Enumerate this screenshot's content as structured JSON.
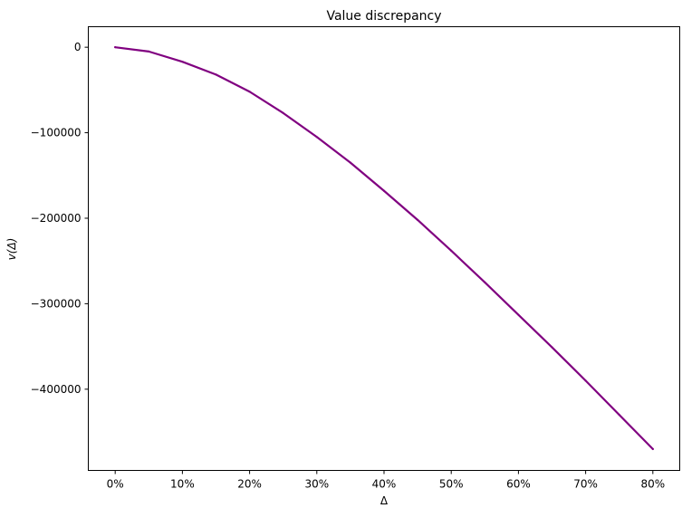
{
  "chart_data": {
    "type": "line",
    "title": "Value discrepancy",
    "xlabel": "Δ",
    "ylabel": "v(Δ)",
    "xlim": [
      -0.04,
      0.84
    ],
    "ylim": [
      -495000,
      24000
    ],
    "x_ticks": [
      0,
      0.1,
      0.2,
      0.3,
      0.4,
      0.5,
      0.6,
      0.7,
      0.8
    ],
    "x_tick_labels": [
      "0%",
      "10%",
      "20%",
      "30%",
      "40%",
      "50%",
      "60%",
      "70%",
      "80%"
    ],
    "y_ticks": [
      0,
      -100000,
      -200000,
      -300000,
      -400000
    ],
    "y_tick_labels": [
      "0",
      "−100000",
      "−200000",
      "−300000",
      "−400000"
    ],
    "grid": false,
    "series": [
      {
        "color": "#800080",
        "x": [
          0,
          0.05,
          0.1,
          0.15,
          0.2,
          0.25,
          0.3,
          0.35,
          0.4,
          0.45,
          0.5,
          0.55,
          0.6,
          0.65,
          0.7,
          0.75,
          0.8
        ],
        "values": [
          0,
          -5000,
          -17000,
          -32000,
          -52000,
          -77000,
          -105000,
          -135000,
          -168000,
          -202000,
          -238000,
          -275000,
          -313000,
          -351000,
          -390000,
          -430000,
          -470000
        ]
      }
    ]
  }
}
